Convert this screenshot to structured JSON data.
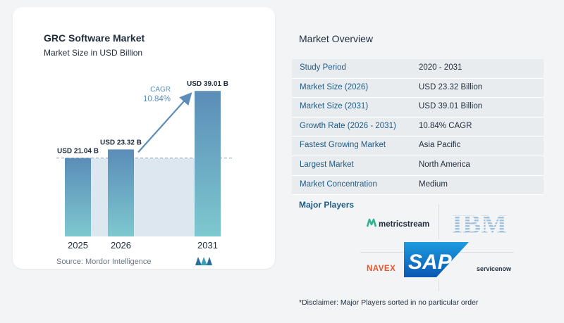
{
  "chart": {
    "title": "GRC Software Market",
    "subtitle": "Market Size in USD Billion",
    "source": "Source: Mordor Intelligence",
    "cagr_label": "CAGR",
    "cagr_value": "10.84%"
  },
  "chart_data": {
    "type": "bar",
    "categories": [
      "2025",
      "2026",
      "2031"
    ],
    "values": [
      21.04,
      23.32,
      39.01
    ],
    "data_labels": [
      "USD 21.04 B",
      "USD 23.32 B",
      "USD 39.01 B"
    ],
    "title": "GRC Software Market",
    "subtitle": "Market Size in USD Billion",
    "annotation": "CAGR 10.84%",
    "colors": {
      "bar_top": "#5b8db8",
      "bar_bottom": "#7ec8cf",
      "shade": "#dde7f0",
      "arrow": "#5b8db8"
    }
  },
  "overview": {
    "title": "Market Overview",
    "rows": [
      {
        "label": "Study Period",
        "value": "2020 - 2031"
      },
      {
        "label": "Market Size (2026)",
        "value": "USD 23.32 Billion"
      },
      {
        "label": "Market Size (2031)",
        "value": "USD 39.01 Billion"
      },
      {
        "label": "Growth Rate (2026 - 2031)",
        "value": "10.84% CAGR"
      },
      {
        "label": "Fastest Growing Market",
        "value": "Asia Pacific"
      },
      {
        "label": "Largest Market",
        "value": "North America"
      },
      {
        "label": "Market Concentration",
        "value": "Medium"
      }
    ]
  },
  "players": {
    "title": "Major Players",
    "logos": [
      "metricstream",
      "IBM",
      "NAVEX",
      "SAP",
      "servicenow"
    ]
  },
  "disclaimer": "*Disclaimer: Major Players sorted in no particular order"
}
